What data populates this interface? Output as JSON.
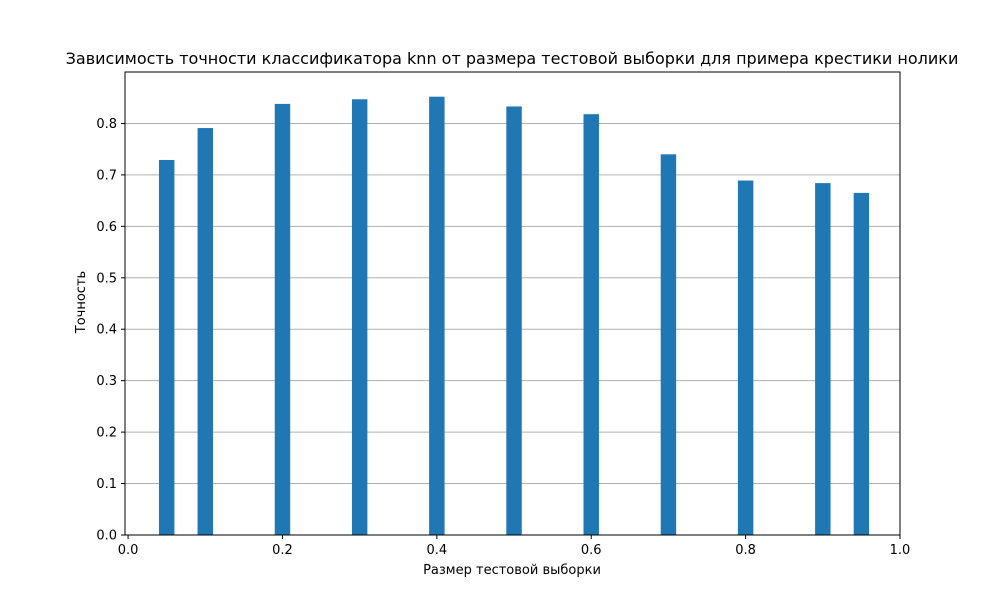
{
  "chart_data": {
    "type": "bar",
    "title": "Зависимость точности классификатора knn от размера тестовой выборки для примера крестики нолики",
    "xlabel": "Размер тестовой выборки",
    "ylabel": "Точность",
    "xlim": [
      -0.004,
      1.0
    ],
    "ylim": [
      0.0,
      0.9
    ],
    "bar_width": 0.02,
    "grid": {
      "axis": "y",
      "enabled": true
    },
    "color": "#1f77b4",
    "x": [
      0.05,
      0.1,
      0.2,
      0.3,
      0.4,
      0.5,
      0.6,
      0.7,
      0.8,
      0.9,
      0.95
    ],
    "values": [
      0.729,
      0.791,
      0.838,
      0.847,
      0.852,
      0.833,
      0.818,
      0.74,
      0.689,
      0.684,
      0.665
    ],
    "xticks": [
      0.0,
      0.2,
      0.4,
      0.6,
      0.8,
      1.0
    ],
    "xtick_labels": [
      "0.0",
      "0.2",
      "0.4",
      "0.6",
      "0.8",
      "1.0"
    ],
    "yticks": [
      0.0,
      0.1,
      0.2,
      0.3,
      0.4,
      0.5,
      0.6,
      0.7,
      0.8
    ],
    "ytick_labels": [
      "0.0",
      "0.1",
      "0.2",
      "0.3",
      "0.4",
      "0.5",
      "0.6",
      "0.7",
      "0.8"
    ]
  }
}
